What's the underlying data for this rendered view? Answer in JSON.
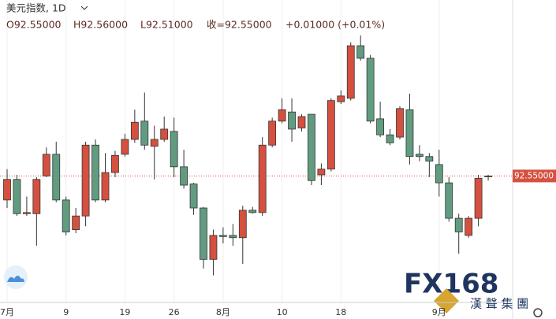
{
  "header": {
    "title": "美元指数, 1D",
    "open": "O92.55000",
    "high": "H92.56000",
    "low": "L92.51000",
    "close": "收=92.55000",
    "change": "+0.01000 (+0.01%)"
  },
  "watermark": {
    "brand": "FX168",
    "name": "漢 聲 集 團"
  },
  "chart_data": {
    "type": "candlestick",
    "categories": [
      "7月",
      null,
      null,
      null,
      null,
      null,
      "9",
      null,
      null,
      null,
      null,
      null,
      "19",
      null,
      null,
      null,
      null,
      "26",
      null,
      null,
      null,
      null,
      "8月",
      null,
      null,
      null,
      null,
      null,
      "10",
      null,
      null,
      null,
      null,
      null,
      "18",
      null,
      null,
      null,
      null,
      null,
      null,
      null,
      null,
      null,
      "9月",
      null,
      null,
      null,
      null,
      null
    ],
    "open": [
      92.34,
      92.52,
      92.22,
      92.22,
      92.55,
      92.74,
      92.34,
      92.08,
      92.2,
      92.82,
      92.34,
      92.58,
      92.74,
      92.87,
      93.03,
      92.81,
      92.87,
      92.94,
      92.63,
      92.48,
      92.27,
      91.82,
      92.03,
      92.03,
      92.01,
      92.25,
      92.23,
      92.82,
      93.03,
      93.11,
      92.97,
      93.09,
      92.56,
      92.61,
      93.2,
      93.23,
      93.69,
      93.58,
      93.05,
      92.91,
      92.89,
      93.13,
      92.74,
      92.72,
      92.65,
      92.49,
      92.18,
      92.03,
      92.18,
      92.55
    ],
    "high": [
      92.61,
      92.56,
      92.37,
      92.54,
      92.8,
      92.85,
      92.37,
      92.27,
      92.85,
      92.87,
      92.75,
      92.77,
      92.92,
      93.13,
      93.28,
      92.99,
      93.07,
      93.06,
      92.78,
      92.49,
      92.28,
      92.08,
      92.1,
      92.13,
      92.29,
      92.28,
      92.89,
      93.06,
      93.23,
      93.23,
      93.09,
      93.09,
      92.66,
      93.23,
      93.3,
      93.72,
      93.78,
      93.61,
      93.2,
      92.96,
      93.16,
      93.27,
      92.82,
      92.75,
      92.78,
      92.54,
      92.22,
      92.2,
      92.56,
      92.56
    ],
    "low": [
      92.27,
      92.2,
      92.2,
      91.94,
      92.54,
      92.32,
      92.03,
      92.05,
      92.11,
      92.32,
      92.32,
      92.54,
      92.72,
      92.84,
      92.78,
      92.52,
      92.85,
      92.54,
      92.44,
      92.21,
      91.74,
      91.68,
      91.96,
      91.94,
      91.78,
      92.22,
      92.2,
      92.8,
      93.01,
      92.85,
      92.94,
      92.47,
      92.47,
      92.59,
      93.18,
      93.21,
      93.56,
      93.01,
      92.89,
      92.82,
      92.87,
      92.65,
      92.68,
      92.54,
      92.37,
      92.15,
      91.87,
      92.01,
      92.11,
      92.51
    ],
    "close": [
      92.52,
      92.22,
      92.23,
      92.52,
      92.74,
      92.34,
      92.06,
      92.2,
      92.82,
      92.34,
      92.58,
      92.73,
      92.87,
      93.02,
      92.82,
      92.87,
      92.96,
      92.63,
      92.47,
      92.27,
      91.82,
      92.03,
      92.02,
      92.01,
      92.25,
      92.23,
      92.82,
      93.03,
      93.13,
      92.96,
      93.07,
      92.51,
      92.61,
      93.21,
      93.25,
      93.69,
      93.58,
      93.03,
      92.91,
      92.84,
      93.14,
      92.72,
      92.72,
      92.68,
      92.49,
      92.18,
      92.06,
      92.18,
      92.53,
      92.55
    ],
    "ylim": [
      91.45,
      94.09
    ],
    "up_color": "#d5503f",
    "down_color": "#619c80",
    "last_price": {
      "value": 92.55,
      "label": "92.55000"
    },
    "grid": true
  }
}
